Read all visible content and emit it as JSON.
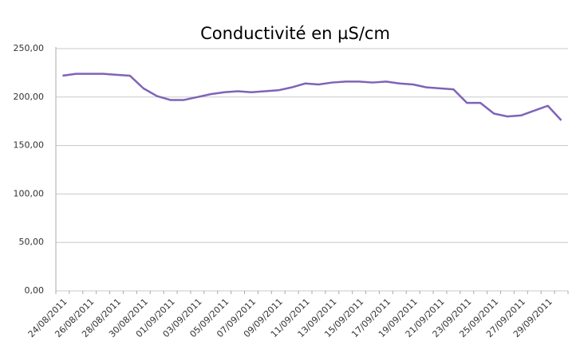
{
  "chart_data": {
    "type": "line",
    "title": "Conductivité en µS/cm",
    "categories": [
      "24/08/2011",
      null,
      "26/08/2011",
      null,
      "28/08/2011",
      null,
      "30/08/2011",
      null,
      "01/09/2011",
      null,
      "03/09/2011",
      null,
      "05/09/2011",
      null,
      "07/09/2011",
      null,
      "09/09/2011",
      null,
      "11/09/2011",
      null,
      "13/09/2011",
      null,
      "15/09/2011",
      null,
      "17/09/2011",
      null,
      "19/09/2011",
      null,
      "21/09/2011",
      null,
      "23/09/2011",
      null,
      "25/09/2011",
      null,
      "27/09/2011",
      null,
      "29/09/2011",
      null
    ],
    "series": [
      {
        "color": "#7f63b8",
        "values": [
          222,
          224,
          224,
          224,
          223,
          222,
          209,
          201,
          197,
          197,
          200,
          203,
          205,
          206,
          205,
          206,
          207,
          210,
          214,
          213,
          215,
          216,
          216,
          215,
          216,
          214,
          213,
          210,
          209,
          208,
          194,
          194,
          183,
          180,
          181,
          186,
          191,
          176
        ]
      }
    ],
    "ylim": [
      0,
      250
    ],
    "yticks": [
      {
        "value": 0,
        "label": "0,00"
      },
      {
        "value": 50,
        "label": "50,00"
      },
      {
        "value": 100,
        "label": "100,00"
      },
      {
        "value": 150,
        "label": "150,00"
      },
      {
        "value": 200,
        "label": "200,00"
      },
      {
        "value": 250,
        "label": "250,00"
      }
    ],
    "grid": true
  }
}
